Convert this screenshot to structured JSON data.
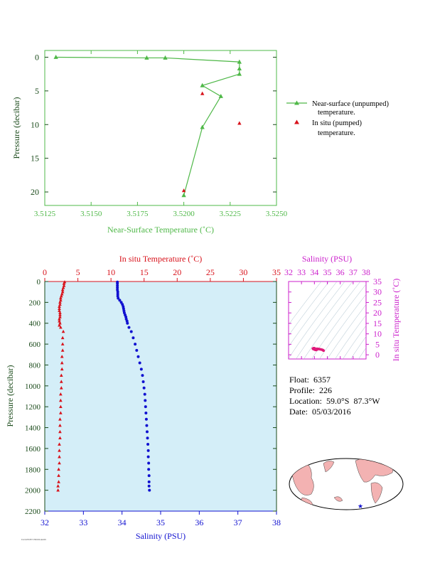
{
  "colors": {
    "green": "#4fb848",
    "red": "#d8121b",
    "blue": "#1010d0",
    "magenta": "#cc22cc",
    "plot_bg": "#d4eef8",
    "axis_dark": "#1a4a1a",
    "map_land": "#f3b2b2",
    "map_ocean": "#ffffff"
  },
  "footnote": "FLOAT6357 PROFILE226",
  "info": {
    "float": "Float:  6357",
    "profile": "Profile:  226",
    "location": "Location:  59.0°S  87.3°W",
    "date": "Date:  05/03/2016"
  },
  "chart_data": [
    {
      "type": "line",
      "id": "near-surface",
      "xlabel": "Near-Surface Temperature (˚C)",
      "ylabel": "Pressure (decibar)",
      "xlim": [
        3.5125,
        3.525
      ],
      "ylim": [
        22,
        -1
      ],
      "x_ticks": [
        "3.5125",
        "3.5150",
        "3.5175",
        "3.5200",
        "3.5225",
        "3.5250"
      ],
      "x_tick_values": [
        3.5125,
        3.515,
        3.5175,
        3.52,
        3.5225,
        3.525
      ],
      "y_ticks": [
        0,
        5,
        10,
        15,
        20
      ],
      "legend": {
        "placement": "right",
        "entries": [
          {
            "line1": "Near-surface (unpumped)",
            "line2": "temperature."
          },
          {
            "line1": "In situ (pumped)",
            "line2": "temperature."
          }
        ]
      },
      "series": [
        {
          "name": "Near-surface (unpumped) temperature.",
          "points": [
            [
              3.5131,
              0.0
            ],
            [
              3.518,
              0.1
            ],
            [
              3.519,
              0.1
            ],
            [
              3.523,
              0.7
            ],
            [
              3.523,
              1.7
            ],
            [
              3.523,
              2.5
            ],
            [
              3.521,
              4.2
            ],
            [
              3.522,
              5.8
            ],
            [
              3.521,
              10.4
            ],
            [
              3.52,
              20.5
            ]
          ]
        },
        {
          "name": "In situ (pumped) temperature.",
          "points": [
            [
              3.521,
              5.4
            ],
            [
              3.523,
              9.8
            ],
            [
              3.52,
              19.8
            ]
          ]
        }
      ]
    },
    {
      "type": "scatter",
      "id": "profile",
      "title_top": "In situ Temperature (˚C)",
      "xlabel_bottom": "Salinity (PSU)",
      "ylabel": "Pressure (decibar)",
      "ylim": [
        2200,
        0
      ],
      "temp_lim": [
        0,
        35
      ],
      "sal_lim": [
        32,
        38
      ],
      "temp_ticks": [
        0,
        5,
        10,
        15,
        20,
        25,
        30,
        35
      ],
      "sal_ticks": [
        32,
        33,
        34,
        35,
        36,
        37,
        38
      ],
      "y_ticks": [
        0,
        200,
        400,
        600,
        800,
        1000,
        1200,
        1400,
        1600,
        1800,
        2000,
        2200
      ],
      "temperature_profile": [
        [
          3.0,
          5
        ],
        [
          2.9,
          20
        ],
        [
          2.9,
          40
        ],
        [
          2.8,
          60
        ],
        [
          2.7,
          80
        ],
        [
          2.7,
          100
        ],
        [
          2.6,
          120
        ],
        [
          2.5,
          140
        ],
        [
          2.4,
          160
        ],
        [
          2.4,
          180
        ],
        [
          2.3,
          200
        ],
        [
          2.3,
          220
        ],
        [
          2.2,
          240
        ],
        [
          2.2,
          260
        ],
        [
          2.2,
          280
        ],
        [
          2.3,
          300
        ],
        [
          2.3,
          320
        ],
        [
          2.3,
          340
        ],
        [
          2.2,
          360
        ],
        [
          2.2,
          380
        ],
        [
          2.3,
          400
        ],
        [
          2.2,
          420
        ],
        [
          2.4,
          440
        ],
        [
          2.8,
          480
        ],
        [
          2.7,
          540
        ],
        [
          2.7,
          600
        ],
        [
          2.7,
          660
        ],
        [
          2.6,
          720
        ],
        [
          2.6,
          780
        ],
        [
          2.6,
          840
        ],
        [
          2.5,
          900
        ],
        [
          2.5,
          960
        ],
        [
          2.5,
          1020
        ],
        [
          2.4,
          1080
        ],
        [
          2.4,
          1140
        ],
        [
          2.4,
          1200
        ],
        [
          2.4,
          1260
        ],
        [
          2.3,
          1320
        ],
        [
          2.3,
          1380
        ],
        [
          2.3,
          1440
        ],
        [
          2.3,
          1500
        ],
        [
          2.2,
          1560
        ],
        [
          2.2,
          1620
        ],
        [
          2.2,
          1680
        ],
        [
          2.2,
          1740
        ],
        [
          2.1,
          1800
        ],
        [
          2.1,
          1860
        ],
        [
          2.1,
          1920
        ],
        [
          2.0,
          1960
        ],
        [
          2.0,
          2000
        ]
      ],
      "salinity_profile": [
        [
          33.88,
          5
        ],
        [
          33.88,
          20
        ],
        [
          33.88,
          40
        ],
        [
          33.88,
          60
        ],
        [
          33.88,
          80
        ],
        [
          33.89,
          100
        ],
        [
          33.89,
          120
        ],
        [
          33.89,
          140
        ],
        [
          33.9,
          160
        ],
        [
          33.94,
          180
        ],
        [
          33.98,
          200
        ],
        [
          34.01,
          220
        ],
        [
          34.03,
          240
        ],
        [
          34.04,
          260
        ],
        [
          34.05,
          280
        ],
        [
          34.06,
          300
        ],
        [
          34.08,
          320
        ],
        [
          34.1,
          340
        ],
        [
          34.11,
          360
        ],
        [
          34.13,
          380
        ],
        [
          34.14,
          400
        ],
        [
          34.18,
          440
        ],
        [
          34.24,
          480
        ],
        [
          34.29,
          540
        ],
        [
          34.34,
          600
        ],
        [
          34.38,
          660
        ],
        [
          34.42,
          720
        ],
        [
          34.46,
          780
        ],
        [
          34.5,
          840
        ],
        [
          34.53,
          900
        ],
        [
          34.55,
          960
        ],
        [
          34.57,
          1020
        ],
        [
          34.59,
          1080
        ],
        [
          34.6,
          1140
        ],
        [
          34.61,
          1200
        ],
        [
          34.62,
          1260
        ],
        [
          34.63,
          1320
        ],
        [
          34.64,
          1380
        ],
        [
          34.65,
          1440
        ],
        [
          34.66,
          1500
        ],
        [
          34.67,
          1560
        ],
        [
          34.68,
          1620
        ],
        [
          34.68,
          1680
        ],
        [
          34.69,
          1740
        ],
        [
          34.69,
          1800
        ],
        [
          34.7,
          1860
        ],
        [
          34.7,
          1920
        ],
        [
          34.7,
          1960
        ],
        [
          34.71,
          2000
        ]
      ]
    },
    {
      "type": "scatter",
      "id": "ts-diagram",
      "title_top": "Salinity (PSU)",
      "ylabel_right": "In situ Temperature (˚C)",
      "sal_ticks": [
        32,
        33,
        34,
        35,
        36,
        37,
        38
      ],
      "temp_ticks": [
        0,
        5,
        10,
        15,
        20,
        25,
        30,
        35
      ],
      "sal_lim": [
        32,
        38
      ],
      "temp_lim": [
        -2,
        35
      ],
      "points": [
        [
          33.88,
          3.0
        ],
        [
          33.9,
          2.8
        ],
        [
          33.98,
          2.6
        ],
        [
          34.05,
          2.4
        ],
        [
          34.1,
          2.3
        ],
        [
          34.14,
          2.3
        ],
        [
          34.2,
          2.5
        ],
        [
          34.26,
          2.7
        ],
        [
          34.32,
          2.8
        ],
        [
          34.4,
          2.7
        ],
        [
          34.48,
          2.6
        ],
        [
          34.55,
          2.5
        ],
        [
          34.6,
          2.4
        ],
        [
          34.64,
          2.3
        ],
        [
          34.67,
          2.2
        ],
        [
          34.69,
          2.1
        ],
        [
          34.71,
          2.0
        ],
        [
          33.95,
          3.2
        ],
        [
          34.02,
          3.1
        ],
        [
          34.2,
          2.9
        ]
      ]
    }
  ]
}
